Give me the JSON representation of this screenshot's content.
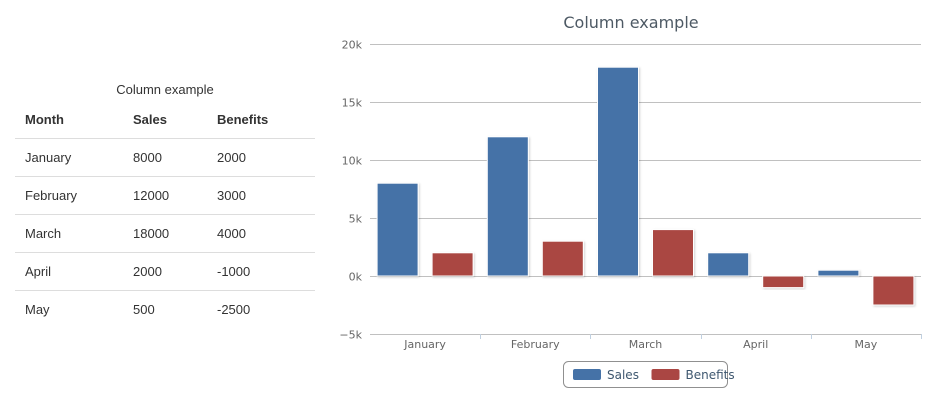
{
  "table": {
    "caption": "Column example",
    "headers": [
      "Month",
      "Sales",
      "Benefits"
    ],
    "rows": [
      [
        "January",
        "8000",
        "2000"
      ],
      [
        "February",
        "12000",
        "3000"
      ],
      [
        "March",
        "18000",
        "4000"
      ],
      [
        "April",
        "2000",
        "-1000"
      ],
      [
        "May",
        "500",
        "-2500"
      ]
    ]
  },
  "chart_data": {
    "type": "bar",
    "title": "Column example",
    "xlabel": "",
    "ylabel": "",
    "categories": [
      "January",
      "February",
      "March",
      "April",
      "May"
    ],
    "series": [
      {
        "name": "Sales",
        "values": [
          8000,
          12000,
          18000,
          2000,
          500
        ],
        "color": "#4572a7"
      },
      {
        "name": "Benefits",
        "values": [
          2000,
          3000,
          4000,
          -1000,
          -2500
        ],
        "color": "#aa4643"
      }
    ],
    "ylim": [
      -5000,
      20000
    ],
    "yticks": [
      20000,
      15000,
      10000,
      5000,
      0,
      -5000
    ],
    "ytick_labels": [
      "20k",
      "15k",
      "10k",
      "5k",
      "0k",
      "−5k"
    ],
    "grid": true,
    "legend_position": "bottom-center"
  }
}
